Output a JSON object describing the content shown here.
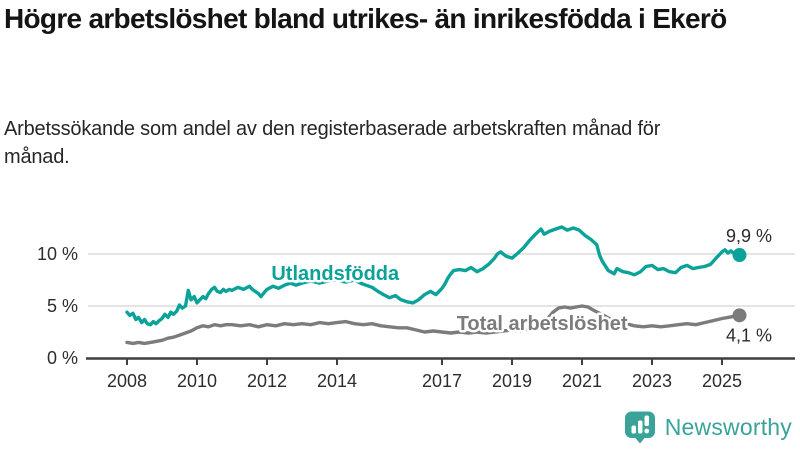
{
  "branding": {
    "logo_text": "Newsworthy",
    "logo_icon": "bar-chart-speech-bubble",
    "brand_color": "#3aa399"
  },
  "chart_data": {
    "type": "line",
    "title": "Högre arbetslöshet bland utrikes- än inrikesfödda i Ekerö",
    "subtitle": "Arbetssökande som andel av den registerbaserade arbetskraften månad för månad.",
    "unit": "%",
    "xlim": [
      2008,
      2025.7
    ],
    "ylim": [
      0,
      13
    ],
    "grid": "horizontal-only",
    "legend_position": "inline-labels",
    "x_tick_years": [
      2008,
      2010,
      2012,
      2014,
      2017,
      2019,
      2021,
      2023,
      2025
    ],
    "y_ticks": [
      {
        "value": 0,
        "label": "0 %"
      },
      {
        "value": 5,
        "label": "5 %"
      },
      {
        "value": 10,
        "label": "10 %"
      }
    ],
    "colors": {
      "foreign_born": "#0aa299",
      "total": "#7c7c7c",
      "gridline": "#dcdcdc",
      "axis": "#3f3f3f"
    },
    "series": [
      {
        "name": "Utlandsfödda",
        "color": "#0aa299",
        "end_value": 9.9,
        "end_label": "9,9 %",
        "end_label_position": "above",
        "label_at": [
          2013.95,
          7.5
        ],
        "points": [
          [
            2008.0,
            4.4
          ],
          [
            2008.08,
            4.1
          ],
          [
            2008.17,
            4.3
          ],
          [
            2008.25,
            3.7
          ],
          [
            2008.33,
            3.9
          ],
          [
            2008.42,
            3.4
          ],
          [
            2008.5,
            3.7
          ],
          [
            2008.58,
            3.3
          ],
          [
            2008.67,
            3.2
          ],
          [
            2008.75,
            3.5
          ],
          [
            2008.83,
            3.3
          ],
          [
            2008.92,
            3.6
          ],
          [
            2009.0,
            3.8
          ],
          [
            2009.08,
            4.2
          ],
          [
            2009.17,
            3.9
          ],
          [
            2009.25,
            4.4
          ],
          [
            2009.33,
            4.2
          ],
          [
            2009.42,
            4.5
          ],
          [
            2009.5,
            5.1
          ],
          [
            2009.58,
            4.8
          ],
          [
            2009.67,
            5.0
          ],
          [
            2009.75,
            6.5
          ],
          [
            2009.83,
            5.6
          ],
          [
            2009.92,
            5.9
          ],
          [
            2010.0,
            5.3
          ],
          [
            2010.08,
            5.6
          ],
          [
            2010.17,
            5.9
          ],
          [
            2010.25,
            5.7
          ],
          [
            2010.33,
            6.2
          ],
          [
            2010.42,
            6.6
          ],
          [
            2010.5,
            6.8
          ],
          [
            2010.58,
            6.4
          ],
          [
            2010.67,
            6.3
          ],
          [
            2010.75,
            6.6
          ],
          [
            2010.83,
            6.4
          ],
          [
            2010.92,
            6.6
          ],
          [
            2011.0,
            6.5
          ],
          [
            2011.17,
            6.8
          ],
          [
            2011.33,
            6.6
          ],
          [
            2011.5,
            6.9
          ],
          [
            2011.58,
            6.6
          ],
          [
            2011.75,
            6.2
          ],
          [
            2011.83,
            5.9
          ],
          [
            2011.92,
            6.3
          ],
          [
            2012.0,
            6.6
          ],
          [
            2012.17,
            6.9
          ],
          [
            2012.33,
            6.7
          ],
          [
            2012.5,
            7.0
          ],
          [
            2012.67,
            7.2
          ],
          [
            2012.83,
            7.0
          ],
          [
            2013.0,
            7.2
          ],
          [
            2013.25,
            7.4
          ],
          [
            2013.5,
            7.2
          ],
          [
            2013.75,
            7.4
          ],
          [
            2014.0,
            7.5
          ],
          [
            2014.25,
            7.3
          ],
          [
            2014.5,
            7.5
          ],
          [
            2014.67,
            7.2
          ],
          [
            2014.83,
            7.0
          ],
          [
            2015.0,
            6.8
          ],
          [
            2015.17,
            6.4
          ],
          [
            2015.33,
            6.1
          ],
          [
            2015.5,
            5.8
          ],
          [
            2015.67,
            6.0
          ],
          [
            2015.83,
            5.6
          ],
          [
            2016.0,
            5.4
          ],
          [
            2016.17,
            5.3
          ],
          [
            2016.33,
            5.6
          ],
          [
            2016.5,
            6.1
          ],
          [
            2016.67,
            6.4
          ],
          [
            2016.83,
            6.1
          ],
          [
            2017.0,
            6.7
          ],
          [
            2017.08,
            7.1
          ],
          [
            2017.17,
            7.7
          ],
          [
            2017.25,
            8.1
          ],
          [
            2017.33,
            8.4
          ],
          [
            2017.5,
            8.5
          ],
          [
            2017.67,
            8.4
          ],
          [
            2017.83,
            8.7
          ],
          [
            2018.0,
            8.3
          ],
          [
            2018.17,
            8.6
          ],
          [
            2018.33,
            9.0
          ],
          [
            2018.5,
            9.6
          ],
          [
            2018.58,
            10.0
          ],
          [
            2018.67,
            10.2
          ],
          [
            2018.83,
            9.8
          ],
          [
            2019.0,
            9.6
          ],
          [
            2019.17,
            10.1
          ],
          [
            2019.33,
            10.6
          ],
          [
            2019.5,
            11.3
          ],
          [
            2019.67,
            11.9
          ],
          [
            2019.83,
            12.4
          ],
          [
            2019.92,
            11.9
          ],
          [
            2020.08,
            12.2
          ],
          [
            2020.25,
            12.4
          ],
          [
            2020.42,
            12.6
          ],
          [
            2020.58,
            12.3
          ],
          [
            2020.75,
            12.5
          ],
          [
            2020.92,
            12.3
          ],
          [
            2021.08,
            11.8
          ],
          [
            2021.25,
            11.4
          ],
          [
            2021.42,
            10.9
          ],
          [
            2021.5,
            9.9
          ],
          [
            2021.58,
            9.3
          ],
          [
            2021.75,
            8.4
          ],
          [
            2021.92,
            8.1
          ],
          [
            2022.0,
            8.6
          ],
          [
            2022.17,
            8.3
          ],
          [
            2022.33,
            8.2
          ],
          [
            2022.5,
            8.0
          ],
          [
            2022.67,
            8.3
          ],
          [
            2022.83,
            8.8
          ],
          [
            2023.0,
            8.9
          ],
          [
            2023.17,
            8.5
          ],
          [
            2023.33,
            8.6
          ],
          [
            2023.5,
            8.3
          ],
          [
            2023.67,
            8.2
          ],
          [
            2023.83,
            8.7
          ],
          [
            2024.0,
            8.9
          ],
          [
            2024.17,
            8.6
          ],
          [
            2024.33,
            8.7
          ],
          [
            2024.5,
            8.8
          ],
          [
            2024.67,
            9.0
          ],
          [
            2024.83,
            9.6
          ],
          [
            2025.0,
            10.2
          ],
          [
            2025.08,
            10.4
          ],
          [
            2025.17,
            10.1
          ],
          [
            2025.25,
            10.3
          ],
          [
            2025.33,
            10.1
          ],
          [
            2025.42,
            10.0
          ],
          [
            2025.5,
            9.9
          ]
        ]
      },
      {
        "name": "Total arbetslöshet",
        "color": "#7c7c7c",
        "end_value": 4.1,
        "end_label": "4,1 %",
        "end_label_position": "below",
        "label_at": [
          2019.86,
          2.7
        ],
        "points": [
          [
            2008.0,
            1.5
          ],
          [
            2008.17,
            1.4
          ],
          [
            2008.33,
            1.5
          ],
          [
            2008.5,
            1.4
          ],
          [
            2008.67,
            1.5
          ],
          [
            2008.83,
            1.6
          ],
          [
            2009.0,
            1.7
          ],
          [
            2009.17,
            1.9
          ],
          [
            2009.33,
            2.0
          ],
          [
            2009.5,
            2.2
          ],
          [
            2009.67,
            2.4
          ],
          [
            2009.83,
            2.6
          ],
          [
            2010.0,
            2.9
          ],
          [
            2010.17,
            3.1
          ],
          [
            2010.33,
            3.0
          ],
          [
            2010.5,
            3.2
          ],
          [
            2010.67,
            3.1
          ],
          [
            2010.83,
            3.2
          ],
          [
            2011.0,
            3.2
          ],
          [
            2011.25,
            3.1
          ],
          [
            2011.5,
            3.2
          ],
          [
            2011.75,
            3.0
          ],
          [
            2012.0,
            3.2
          ],
          [
            2012.25,
            3.1
          ],
          [
            2012.5,
            3.3
          ],
          [
            2012.75,
            3.2
          ],
          [
            2013.0,
            3.3
          ],
          [
            2013.25,
            3.2
          ],
          [
            2013.5,
            3.4
          ],
          [
            2013.75,
            3.3
          ],
          [
            2014.0,
            3.4
          ],
          [
            2014.25,
            3.5
          ],
          [
            2014.5,
            3.3
          ],
          [
            2014.75,
            3.2
          ],
          [
            2015.0,
            3.3
          ],
          [
            2015.25,
            3.1
          ],
          [
            2015.5,
            3.0
          ],
          [
            2015.75,
            2.9
          ],
          [
            2016.0,
            2.9
          ],
          [
            2016.25,
            2.7
          ],
          [
            2016.5,
            2.5
          ],
          [
            2016.75,
            2.6
          ],
          [
            2017.0,
            2.5
          ],
          [
            2017.25,
            2.4
          ],
          [
            2017.5,
            2.5
          ],
          [
            2017.75,
            2.4
          ],
          [
            2018.0,
            2.5
          ],
          [
            2018.25,
            2.4
          ],
          [
            2018.5,
            2.5
          ],
          [
            2018.75,
            2.6
          ],
          [
            2019.0,
            2.7
          ],
          [
            2019.25,
            2.6
          ],
          [
            2019.5,
            2.8
          ],
          [
            2019.75,
            3.0
          ],
          [
            2020.0,
            3.7
          ],
          [
            2020.17,
            4.4
          ],
          [
            2020.33,
            4.8
          ],
          [
            2020.5,
            4.9
          ],
          [
            2020.67,
            4.8
          ],
          [
            2020.83,
            4.9
          ],
          [
            2021.0,
            5.0
          ],
          [
            2021.17,
            4.9
          ],
          [
            2021.33,
            4.6
          ],
          [
            2021.5,
            4.3
          ],
          [
            2021.67,
            4.0
          ],
          [
            2021.83,
            3.7
          ],
          [
            2022.0,
            3.6
          ],
          [
            2022.25,
            3.3
          ],
          [
            2022.5,
            3.1
          ],
          [
            2022.75,
            3.0
          ],
          [
            2023.0,
            3.1
          ],
          [
            2023.25,
            3.0
          ],
          [
            2023.5,
            3.1
          ],
          [
            2023.75,
            3.2
          ],
          [
            2024.0,
            3.3
          ],
          [
            2024.25,
            3.2
          ],
          [
            2024.5,
            3.4
          ],
          [
            2024.75,
            3.6
          ],
          [
            2025.0,
            3.8
          ],
          [
            2025.17,
            3.9
          ],
          [
            2025.33,
            4.0
          ],
          [
            2025.5,
            4.1
          ]
        ]
      }
    ]
  }
}
